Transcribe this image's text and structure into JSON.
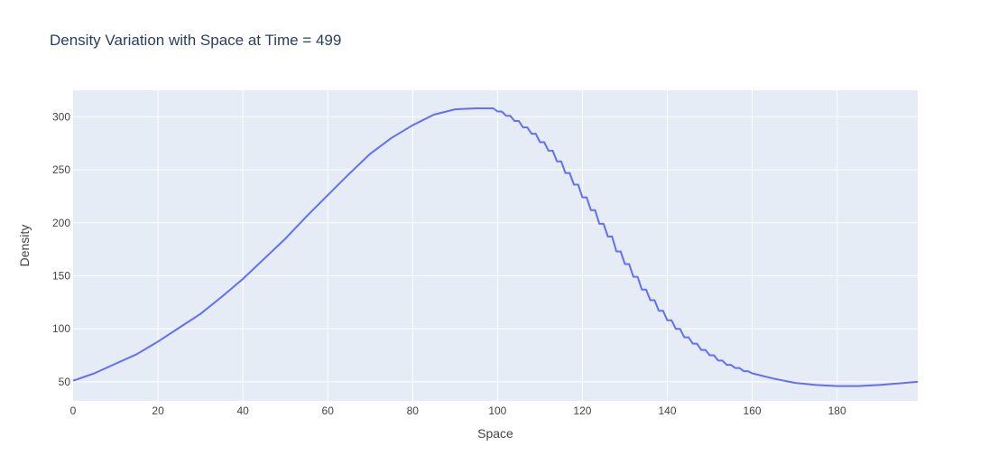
{
  "chart_data": {
    "type": "line",
    "title": "Density Variation with Space at Time = 499",
    "xlabel": "Space",
    "ylabel": "Density",
    "xlim": [
      0,
      199
    ],
    "ylim": [
      32,
      325
    ],
    "x_ticks": [
      0,
      20,
      40,
      60,
      80,
      100,
      120,
      140,
      160,
      180
    ],
    "y_ticks": [
      50,
      100,
      150,
      200,
      250,
      300
    ],
    "grid": true,
    "legend": "none",
    "colors": {
      "line": "#636efa",
      "plot_bg": "#e5ecf6",
      "grid": "#ffffff",
      "text": "#2a3f5f"
    },
    "series": [
      {
        "x": [
          0,
          5,
          10,
          15,
          20,
          25,
          30,
          35,
          40,
          45,
          50,
          55,
          60,
          65,
          70,
          75,
          80,
          85,
          90,
          95,
          100,
          102,
          104,
          106,
          108,
          110,
          112,
          114,
          116,
          118,
          120,
          122,
          124,
          126,
          128,
          130,
          132,
          134,
          136,
          138,
          140,
          142,
          144,
          146,
          148,
          150,
          152,
          154,
          156,
          158,
          160,
          165,
          170,
          175,
          180,
          185,
          190,
          199
        ],
        "values": [
          51,
          58,
          67,
          76,
          88,
          101,
          114,
          130,
          147,
          166,
          185,
          206,
          226,
          246,
          265,
          280,
          292,
          302,
          307,
          308,
          305,
          301,
          296,
          290,
          284,
          276,
          268,
          258,
          247,
          236,
          224,
          212,
          199,
          187,
          173,
          161,
          149,
          137,
          127,
          117,
          108,
          100,
          92,
          86,
          80,
          75,
          70,
          66,
          63,
          60,
          58,
          53,
          49,
          47,
          46,
          46,
          47,
          50
        ]
      }
    ]
  }
}
